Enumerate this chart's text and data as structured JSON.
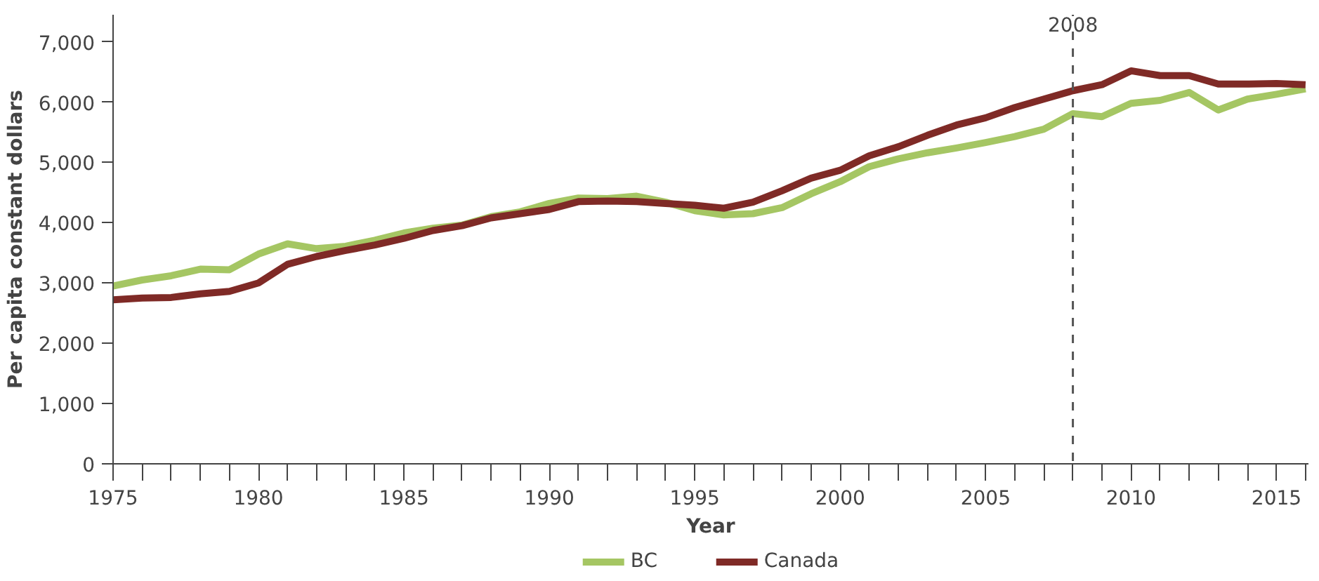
{
  "chart_data": {
    "type": "line",
    "xlabel": "Year",
    "ylabel": "Per capita constant dollars",
    "x": [
      1975,
      1976,
      1977,
      1978,
      1979,
      1980,
      1981,
      1982,
      1983,
      1984,
      1985,
      1986,
      1987,
      1988,
      1989,
      1990,
      1991,
      1992,
      1993,
      1994,
      1995,
      1996,
      1997,
      1998,
      1999,
      2000,
      2001,
      2002,
      2003,
      2004,
      2005,
      2006,
      2007,
      2008,
      2009,
      2010,
      2011,
      2012,
      2013,
      2014,
      2015,
      2016
    ],
    "series": [
      {
        "name": "BC",
        "color": "#a5c663",
        "values": [
          2950,
          3050,
          3120,
          3230,
          3220,
          3480,
          3650,
          3570,
          3610,
          3710,
          3830,
          3910,
          3960,
          4100,
          4180,
          4320,
          4410,
          4400,
          4440,
          4340,
          4200,
          4130,
          4150,
          4250,
          4480,
          4680,
          4930,
          5060,
          5160,
          5240,
          5330,
          5430,
          5550,
          5810,
          5760,
          5980,
          6030,
          6160,
          5870,
          6050,
          6130,
          6220
        ]
      },
      {
        "name": "Canada",
        "color": "#7f2a26",
        "values": [
          2720,
          2750,
          2760,
          2820,
          2860,
          3000,
          3310,
          3440,
          3540,
          3630,
          3740,
          3870,
          3950,
          4080,
          4150,
          4220,
          4350,
          4360,
          4350,
          4320,
          4290,
          4240,
          4340,
          4530,
          4740,
          4870,
          5110,
          5260,
          5450,
          5620,
          5740,
          5910,
          6050,
          6190,
          6290,
          6520,
          6440,
          6440,
          6300,
          6300,
          6310,
          6290
        ]
      }
    ],
    "xlim": [
      1975,
      2016.1
    ],
    "xticks": [
      1975,
      {
        "value": 1976,
        "label": null
      },
      {
        "value": 1977,
        "label": null
      },
      {
        "value": 1978,
        "label": null
      },
      {
        "value": 1979,
        "label": null
      },
      1980,
      {
        "value": 1981,
        "label": null
      },
      {
        "value": 1982,
        "label": null
      },
      {
        "value": 1983,
        "label": null
      },
      {
        "value": 1984,
        "label": null
      },
      1985,
      {
        "value": 1986,
        "label": null
      },
      {
        "value": 1987,
        "label": null
      },
      {
        "value": 1988,
        "label": null
      },
      {
        "value": 1989,
        "label": null
      },
      1990,
      {
        "value": 1991,
        "label": null
      },
      {
        "value": 1992,
        "label": null
      },
      {
        "value": 1993,
        "label": null
      },
      {
        "value": 1994,
        "label": null
      },
      1995,
      {
        "value": 1996,
        "label": null
      },
      {
        "value": 1997,
        "label": null
      },
      {
        "value": 1998,
        "label": null
      },
      {
        "value": 1999,
        "label": null
      },
      2000,
      {
        "value": 2001,
        "label": null
      },
      {
        "value": 2002,
        "label": null
      },
      {
        "value": 2003,
        "label": null
      },
      {
        "value": 2004,
        "label": null
      },
      2005,
      {
        "value": 2006,
        "label": null
      },
      {
        "value": 2007,
        "label": null
      },
      {
        "value": 2008,
        "label": null
      },
      {
        "value": 2009,
        "label": null
      },
      2010,
      {
        "value": 2011,
        "label": null
      },
      {
        "value": 2012,
        "label": null
      },
      {
        "value": 2013,
        "label": null
      },
      {
        "value": 2014,
        "label": null
      },
      2015,
      {
        "value": 2016,
        "label": null
      }
    ],
    "ylim": [
      0,
      7450
    ],
    "yticks": [
      0,
      {
        "value": 1000,
        "label": "1,000"
      },
      {
        "value": 2000,
        "label": "2,000"
      },
      {
        "value": 3000,
        "label": "3,000"
      },
      {
        "value": 4000,
        "label": "4,000"
      },
      {
        "value": 5000,
        "label": "5,000"
      },
      {
        "value": 6000,
        "label": "6,000"
      },
      {
        "value": 7000,
        "label": "7,000"
      }
    ],
    "ref_lines": [
      {
        "axis": "x",
        "value": 2008,
        "label": "2008",
        "color": "#555555",
        "line_style": "dashed"
      }
    ],
    "grid": false,
    "legend": "bottom",
    "marker": "none",
    "line_style": "solid"
  }
}
